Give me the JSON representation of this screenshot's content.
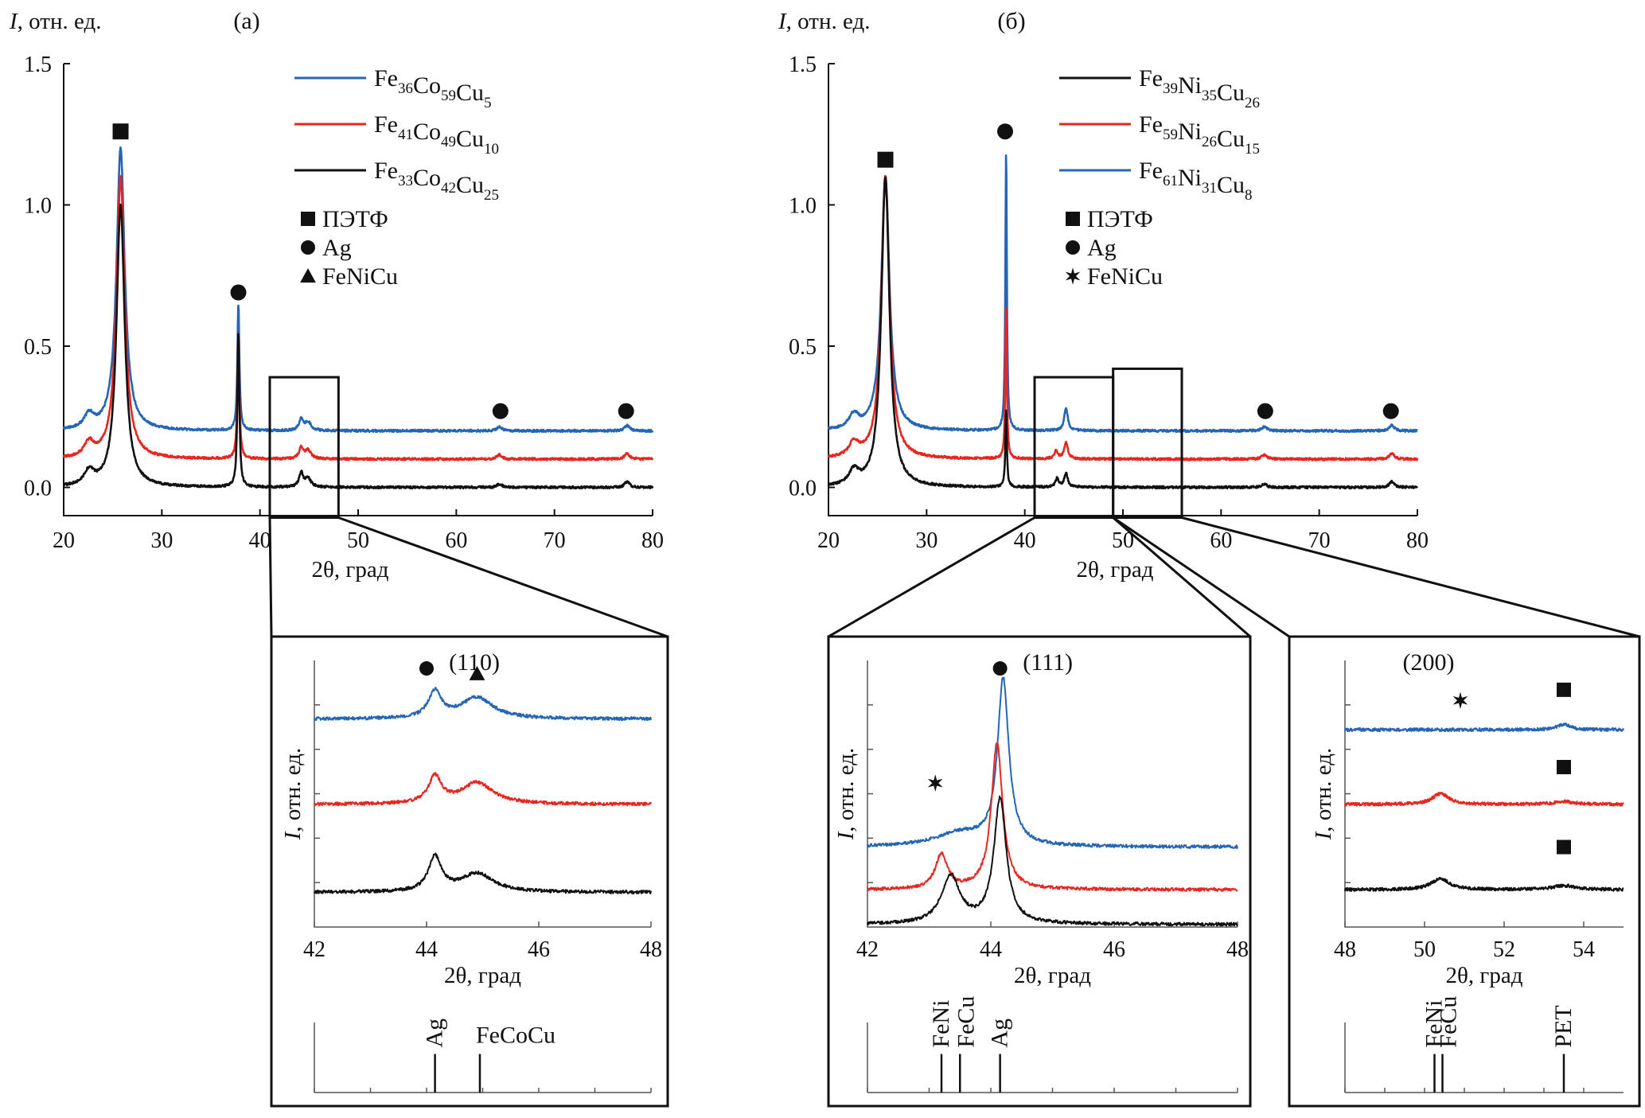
{
  "panels": {
    "a": {
      "label": "(а)",
      "ylabel_italic": "I",
      "ylabel_rest": ", отн. ед.",
      "xlabel": "2θ, град",
      "legend": [
        {
          "base": [
            "Fe",
            "Co",
            "Cu"
          ],
          "subs": [
            "36",
            "59",
            "5"
          ],
          "color": "#2565b5"
        },
        {
          "base": [
            "Fe",
            "Co",
            "Cu"
          ],
          "subs": [
            "41",
            "49",
            "10"
          ],
          "color": "#e8261f"
        },
        {
          "base": [
            "Fe",
            "Co",
            "Cu"
          ],
          "subs": [
            "33",
            "42",
            "25"
          ],
          "color": "#111111"
        }
      ],
      "markers": [
        {
          "symbol": "square",
          "label": "ПЭТФ"
        },
        {
          "symbol": "circle",
          "label": "Ag"
        },
        {
          "symbol": "triangle",
          "label": "FeNiCu"
        }
      ]
    },
    "b": {
      "label": "(б)",
      "ylabel_italic": "I",
      "ylabel_rest": ", отн. ед.",
      "xlabel": "2θ, град",
      "legend": [
        {
          "base": [
            "Fe",
            "Ni",
            "Cu"
          ],
          "subs": [
            "39",
            "35",
            "26"
          ],
          "color": "#111111"
        },
        {
          "base": [
            "Fe",
            "Ni",
            "Cu"
          ],
          "subs": [
            "59",
            "26",
            "15"
          ],
          "color": "#e8261f"
        },
        {
          "base": [
            "Fe",
            "Ni",
            "Cu"
          ],
          "subs": [
            "61",
            "31",
            "8"
          ],
          "color": "#2565b5"
        }
      ],
      "markers": [
        {
          "symbol": "square",
          "label": "ПЭТФ"
        },
        {
          "symbol": "circle",
          "label": "Ag"
        },
        {
          "symbol": "star",
          "label": "FeNiCu"
        }
      ]
    }
  },
  "chart_data": [
    {
      "id": "main_a",
      "type": "line",
      "title": "(а)",
      "xlabel": "2θ, град",
      "ylabel": "I, отн. ед.",
      "xlim": [
        20,
        80
      ],
      "ylim": [
        -0.1,
        1.5
      ],
      "xticks": [
        20,
        30,
        40,
        50,
        60,
        70,
        80
      ],
      "yticks": [
        0.0,
        0.5,
        1.0,
        1.5
      ],
      "ytick_labels": [
        "0.0",
        "0.5",
        "1.0",
        "1.5"
      ],
      "series": [
        {
          "name": "Fe36Co59Cu5",
          "color": "#2565b5",
          "baseline": 0.2,
          "peaks": [
            [
              22.6,
              0.05,
              0.6
            ],
            [
              25.8,
              1.0,
              0.5
            ],
            [
              37.8,
              0.45,
              0.12
            ],
            [
              44.2,
              0.04,
              0.25
            ],
            [
              44.9,
              0.03,
              0.35
            ],
            [
              64.4,
              0.015,
              0.3
            ],
            [
              77.4,
              0.02,
              0.3
            ]
          ]
        },
        {
          "name": "Fe41Co49Cu10",
          "color": "#e8261f",
          "baseline": 0.1,
          "peaks": [
            [
              22.6,
              0.05,
              0.6
            ],
            [
              25.8,
              1.0,
              0.5
            ],
            [
              37.8,
              0.45,
              0.12
            ],
            [
              44.2,
              0.04,
              0.25
            ],
            [
              44.9,
              0.03,
              0.35
            ],
            [
              64.4,
              0.015,
              0.3
            ],
            [
              77.4,
              0.02,
              0.3
            ]
          ]
        },
        {
          "name": "Fe33Co42Cu25",
          "color": "#111111",
          "baseline": 0.0,
          "peaks": [
            [
              22.6,
              0.05,
              0.6
            ],
            [
              25.8,
              1.0,
              0.5
            ],
            [
              37.8,
              0.55,
              0.12
            ],
            [
              44.2,
              0.05,
              0.25
            ],
            [
              44.9,
              0.03,
              0.35
            ],
            [
              64.4,
              0.012,
              0.3
            ],
            [
              77.4,
              0.02,
              0.3
            ]
          ]
        }
      ],
      "annotations": [
        {
          "symbol": "square",
          "x": 25.8,
          "y": 1.26
        },
        {
          "symbol": "circle",
          "x": 37.8,
          "y": 0.69
        },
        {
          "symbol": "circle",
          "x": 64.5,
          "y": 0.27
        },
        {
          "symbol": "circle",
          "x": 77.3,
          "y": 0.27
        }
      ],
      "zoom_box": {
        "x": [
          41,
          48
        ],
        "y": [
          0,
          0.39
        ]
      }
    },
    {
      "id": "main_b",
      "type": "line",
      "title": "(б)",
      "xlabel": "2θ, град",
      "ylabel": "I, отн. ед.",
      "xlim": [
        20,
        80
      ],
      "ylim": [
        -0.1,
        1.5
      ],
      "xticks": [
        20,
        30,
        40,
        50,
        60,
        70,
        80
      ],
      "yticks": [
        0.0,
        0.5,
        1.0,
        1.5
      ],
      "ytick_labels": [
        "0.0",
        "0.5",
        "1.0",
        "1.5"
      ],
      "series": [
        {
          "name": "Fe61Ni31Cu8",
          "color": "#2565b5",
          "baseline": 0.2,
          "peaks": [
            [
              22.6,
              0.05,
              0.6
            ],
            [
              25.8,
              0.9,
              0.5
            ],
            [
              38.1,
              1.0,
              0.09
            ],
            [
              44.2,
              0.08,
              0.22
            ],
            [
              64.4,
              0.015,
              0.3
            ],
            [
              77.4,
              0.02,
              0.3
            ]
          ]
        },
        {
          "name": "Fe59Ni26Cu15",
          "color": "#e8261f",
          "baseline": 0.1,
          "peaks": [
            [
              22.6,
              0.05,
              0.6
            ],
            [
              25.8,
              1.0,
              0.5
            ],
            [
              38.1,
              0.55,
              0.09
            ],
            [
              43.2,
              0.03,
              0.2
            ],
            [
              44.2,
              0.06,
              0.22
            ],
            [
              64.4,
              0.015,
              0.3
            ],
            [
              77.4,
              0.02,
              0.3
            ]
          ]
        },
        {
          "name": "Fe39Ni35Cu26",
          "color": "#111111",
          "baseline": 0.0,
          "peaks": [
            [
              22.6,
              0.05,
              0.6
            ],
            [
              25.8,
              1.1,
              0.5
            ],
            [
              38.1,
              0.28,
              0.09
            ],
            [
              43.3,
              0.03,
              0.2
            ],
            [
              44.2,
              0.05,
              0.22
            ],
            [
              64.4,
              0.012,
              0.3
            ],
            [
              77.4,
              0.02,
              0.3
            ]
          ]
        }
      ],
      "annotations": [
        {
          "symbol": "square",
          "x": 25.8,
          "y": 1.16
        },
        {
          "symbol": "circle",
          "x": 38.0,
          "y": 1.26
        },
        {
          "symbol": "circle",
          "x": 64.5,
          "y": 0.27
        },
        {
          "symbol": "circle",
          "x": 77.3,
          "y": 0.27
        }
      ],
      "zoom_boxes": [
        {
          "x": [
            41,
            49
          ],
          "y": [
            0,
            0.39
          ]
        },
        {
          "x": [
            49,
            56
          ],
          "y": [
            0,
            0.42
          ]
        }
      ]
    },
    {
      "id": "inset_a",
      "type": "line",
      "xlabel": "2θ, град",
      "ylabel": "I, отн. ед.",
      "xlim": [
        42,
        48
      ],
      "xticks": [
        42,
        44,
        46,
        48
      ],
      "ylim": [
        0,
        1
      ],
      "peak_label": "(110)",
      "series": [
        {
          "name": "Fe36Co59Cu5",
          "color": "#2565b5",
          "baseline": 0.78,
          "peaks": [
            [
              44.15,
              0.1,
              0.14
            ],
            [
              44.9,
              0.08,
              0.35
            ]
          ]
        },
        {
          "name": "Fe41Co49Cu10",
          "color": "#e8261f",
          "baseline": 0.46,
          "peaks": [
            [
              44.15,
              0.1,
              0.14
            ],
            [
              44.9,
              0.08,
              0.35
            ]
          ]
        },
        {
          "name": "Fe33Co42Cu25",
          "color": "#111111",
          "baseline": 0.13,
          "peaks": [
            [
              44.15,
              0.13,
              0.14
            ],
            [
              44.9,
              0.07,
              0.35
            ]
          ]
        }
      ],
      "annotations": [
        {
          "symbol": "circle",
          "x": 44.0,
          "y": 0.97
        },
        {
          "symbol": "triangle",
          "x": 44.9,
          "y": 0.95
        }
      ],
      "reference_lines": [
        {
          "label": "Ag",
          "x": 44.15,
          "height": 0.55
        },
        {
          "label": "FeCoCu",
          "x": 44.95,
          "height": 0.55
        }
      ]
    },
    {
      "id": "inset_b1",
      "type": "line",
      "xlabel": "2θ, град",
      "ylabel": "I, отн. ед.",
      "xlim": [
        42,
        48
      ],
      "xticks": [
        42,
        44,
        46,
        48
      ],
      "ylim": [
        0,
        1
      ],
      "peak_label": "(111)",
      "series": [
        {
          "name": "Fe61Ni31Cu8",
          "color": "#2565b5",
          "baseline": 0.3,
          "peaks": [
            [
              43.5,
              0.05,
              0.5
            ],
            [
              44.2,
              0.62,
              0.11
            ]
          ]
        },
        {
          "name": "Fe59Ni26Cu15",
          "color": "#e8261f",
          "baseline": 0.14,
          "peaks": [
            [
              43.2,
              0.13,
              0.12
            ],
            [
              44.1,
              0.55,
              0.11
            ]
          ]
        },
        {
          "name": "Fe39Ni35Cu26",
          "color": "#111111",
          "baseline": 0.01,
          "peaks": [
            [
              43.35,
              0.18,
              0.18
            ],
            [
              44.15,
              0.47,
              0.12
            ]
          ]
        }
      ],
      "annotations": [
        {
          "symbol": "circle",
          "x": 44.15,
          "y": 0.97
        },
        {
          "symbol": "star",
          "x": 43.1,
          "y": 0.54
        }
      ],
      "reference_lines": [
        {
          "label": "FeNi",
          "x": 43.2,
          "height": 0.55
        },
        {
          "label": "FeCu",
          "x": 43.5,
          "height": 0.55
        },
        {
          "label": "Ag",
          "x": 44.15,
          "height": 0.55
        }
      ]
    },
    {
      "id": "inset_b2",
      "type": "line",
      "xlabel": "2θ, град",
      "ylabel": "I, отн. ед.",
      "xlim": [
        48,
        55
      ],
      "xticks": [
        48,
        50,
        52,
        54
      ],
      "ylim": [
        0,
        1
      ],
      "peak_label": "(200)",
      "series": [
        {
          "name": "Fe61Ni31Cu8",
          "color": "#2565b5",
          "baseline": 0.74,
          "peaks": [
            [
              53.5,
              0.02,
              0.2
            ]
          ]
        },
        {
          "name": "Fe59Ni26Cu15",
          "color": "#e8261f",
          "baseline": 0.46,
          "peaks": [
            [
              50.4,
              0.04,
              0.25
            ],
            [
              53.5,
              0.01,
              0.35
            ]
          ]
        },
        {
          "name": "Fe39Ni35Cu26",
          "color": "#111111",
          "baseline": 0.14,
          "peaks": [
            [
              50.4,
              0.04,
              0.28
            ],
            [
              53.5,
              0.015,
              0.35
            ]
          ]
        }
      ],
      "annotations": [
        {
          "symbol": "star",
          "x": 50.9,
          "y": 0.85
        },
        {
          "symbol": "square",
          "x": 53.5,
          "y": 0.89
        },
        {
          "symbol": "square",
          "x": 53.5,
          "y": 0.6
        },
        {
          "symbol": "square",
          "x": 53.5,
          "y": 0.3
        }
      ],
      "reference_lines": [
        {
          "label": "FeNi",
          "x": 50.25,
          "height": 0.55
        },
        {
          "label": "FeCu",
          "x": 50.45,
          "height": 0.55
        },
        {
          "label": "PET",
          "x": 53.5,
          "height": 0.55
        }
      ]
    }
  ]
}
